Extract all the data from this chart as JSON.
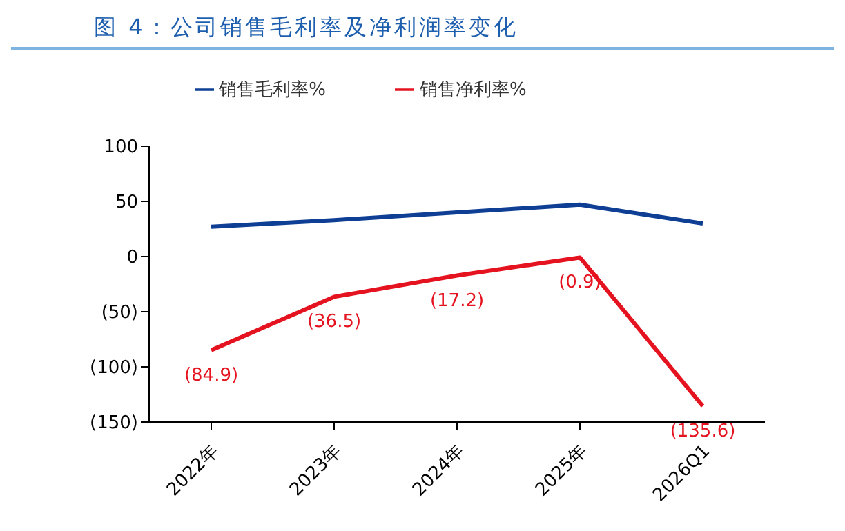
{
  "chart_data": {
    "type": "line",
    "title": "图 4：公司销售毛利率及净利润率变化",
    "categories": [
      "2022年",
      "2023年",
      "2024年",
      "2025年",
      "2026Q1"
    ],
    "series": [
      {
        "name": "销售毛利率%",
        "color": "#0e3f94",
        "values": [
          27,
          33,
          40,
          47,
          30
        ]
      },
      {
        "name": "销售净利率%",
        "color": "#e5131f",
        "values": [
          -84.9,
          -36.5,
          -17.2,
          -0.9,
          -135.6
        ],
        "value_labels": [
          "(84.9)",
          "(36.5)",
          "(17.2)",
          "(0.9)",
          "(135.6)"
        ]
      }
    ],
    "ylim": [
      -150,
      100
    ],
    "yticks": [
      100,
      50,
      0,
      {
        "value": -50,
        "label": "(50)"
      },
      {
        "value": -100,
        "label": "(100)"
      },
      {
        "value": -150,
        "label": "(150)"
      }
    ],
    "grid": false,
    "legend": "top",
    "marker": "none",
    "line_style": "solid"
  }
}
